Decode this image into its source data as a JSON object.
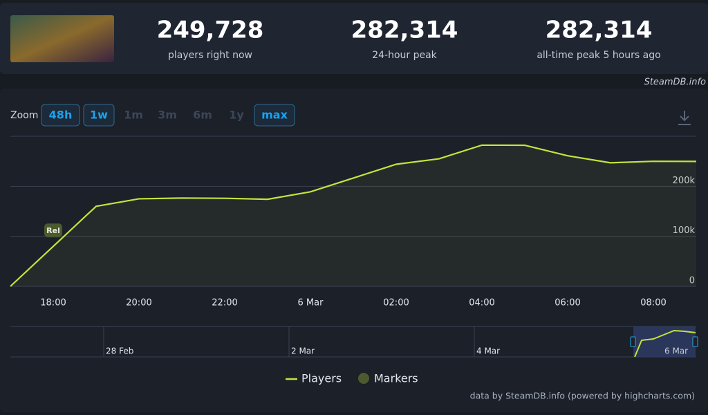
{
  "header": {
    "stats": [
      {
        "value": "249,728",
        "label": "players right now"
      },
      {
        "value": "282,314",
        "label": "24-hour peak"
      },
      {
        "value": "282,314",
        "label": "all-time peak 5 hours ago"
      }
    ],
    "watermark": "SteamDB.info"
  },
  "zoom": {
    "label": "Zoom",
    "buttons": [
      {
        "text": "48h",
        "active": true
      },
      {
        "text": "1w",
        "active": true
      },
      {
        "text": "1m",
        "active": false
      },
      {
        "text": "3m",
        "active": false
      },
      {
        "text": "6m",
        "active": false
      },
      {
        "text": "1y",
        "active": false
      },
      {
        "text": "max",
        "active": true
      }
    ]
  },
  "chart_data": {
    "type": "line",
    "x": [
      null,
      "18:00",
      null,
      "20:00",
      null,
      "22:00",
      null,
      "6 Mar",
      null,
      "02:00",
      null,
      "04:00",
      null,
      "06:00",
      null,
      "08:00",
      null
    ],
    "series": [
      {
        "name": "Players",
        "color": "#c4e43c",
        "values": [
          0,
          80000,
          160000,
          175000,
          176500,
          176000,
          174000,
          189000,
          216500,
          244000,
          255000,
          282314,
          282000,
          261000,
          247000,
          250000,
          249728
        ]
      }
    ],
    "ylim": [
      0,
      300000
    ],
    "yticks": [
      0,
      {
        "value": 100000,
        "label": "100k"
      },
      {
        "value": 200000,
        "label": "200k"
      }
    ],
    "grid": true,
    "markers": {
      "name": "Markers",
      "color": "#4b5a2f",
      "points": [
        {
          "x": "18:00",
          "label": "Rel"
        }
      ]
    },
    "navigator": {
      "labels": [
        "28 Feb",
        "2 Mar",
        "4 Mar",
        "6 Mar"
      ]
    }
  },
  "footer": "data by SteamDB.info (powered by highcharts.com)"
}
